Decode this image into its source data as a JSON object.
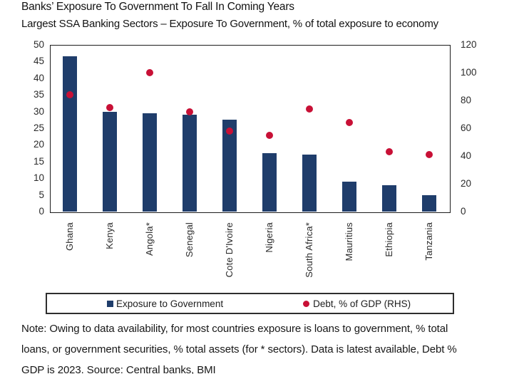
{
  "header": {
    "title": "Banks’ Exposure To Government To Fall In Coming Years",
    "subtitle": "Largest SSA Banking Sectors – Exposure To Government, % of total exposure to economy"
  },
  "chart_data": {
    "type": "bar",
    "title": "Banks’ Exposure To Government To Fall In Coming Years",
    "subtitle": "Largest SSA Banking Sectors – Exposure To Government, % of total exposure to economy",
    "categories": [
      "Ghana",
      "Kenya",
      "Angola*",
      "Senegal",
      "Cote D'Ivoire",
      "Nigeria",
      "South Africa*",
      "Mauritius",
      "Ethiopia",
      "Tanzania"
    ],
    "series": [
      {
        "name": "Exposure to Government",
        "type": "bar",
        "axis": "left",
        "color": "#1F3D6B",
        "values": [
          46.5,
          30,
          29.5,
          29,
          27.5,
          17.5,
          17,
          9,
          8,
          5
        ]
      },
      {
        "name": "Debt, % of GDP (RHS)",
        "type": "scatter",
        "axis": "right",
        "color": "#C81036",
        "values": [
          84,
          75,
          100,
          72,
          58,
          55,
          74,
          64,
          43,
          41
        ]
      }
    ],
    "left_axis": {
      "min": 0,
      "max": 50,
      "step": 5,
      "ticks": [
        0,
        5,
        10,
        15,
        20,
        25,
        30,
        35,
        40,
        45,
        50
      ]
    },
    "right_axis": {
      "min": 0,
      "max": 120,
      "step": 20,
      "ticks": [
        0,
        20,
        40,
        60,
        80,
        100,
        120
      ]
    },
    "grid": false,
    "legend_position": "bottom"
  },
  "legend": {
    "items": [
      {
        "label": "Exposure to Government",
        "marker": "square",
        "color": "#1F3D6B"
      },
      {
        "label": "Debt, % of GDP (RHS)",
        "marker": "circle",
        "color": "#C81036"
      }
    ]
  },
  "note": {
    "lines": [
      "Note: Owing to data availability, for most countries exposure is loans to government, % total",
      "loans, or government securities, % total assets (for * sectors). Data is latest available, Debt %",
      "GDP is 2023. Source: Central banks, BMI"
    ]
  }
}
